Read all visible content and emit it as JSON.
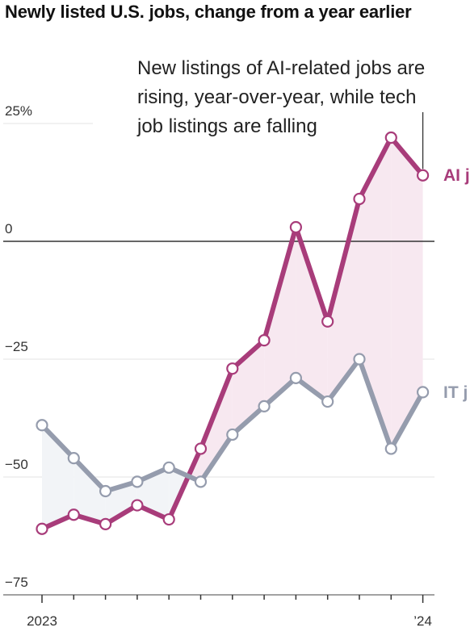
{
  "title": "Newly listed U.S. jobs, change from a year earlier",
  "colors": {
    "ai": "#a83c7a",
    "it": "#959cad",
    "ai_fill": "#f7e8f0",
    "it_fill": "#f2f4f7",
    "grid": "#e3e3e3",
    "zero_line": "#333333"
  },
  "chart_data": {
    "type": "line",
    "title": "Newly listed U.S. jobs, change from a year earlier",
    "x": [
      "2023-01",
      "2023-02",
      "2023-03",
      "2023-04",
      "2023-05",
      "2023-06",
      "2023-07",
      "2023-08",
      "2023-09",
      "2023-10",
      "2023-11",
      "2023-12",
      "2024-01"
    ],
    "x_tick_labels": [
      {
        "index": 0,
        "label": "2023"
      },
      {
        "index": 12,
        "label": "’24"
      }
    ],
    "y_ticks": [
      25,
      0,
      -25,
      -50,
      -75
    ],
    "y_tick_labels": [
      "25%",
      "0",
      "−25",
      "−50",
      "−75"
    ],
    "ylim": [
      -75,
      25
    ],
    "grid": true,
    "series": [
      {
        "name": "AI jobs",
        "label": "AI j",
        "color_key": "ai",
        "values": [
          -61,
          -58,
          -60,
          -56,
          -59,
          -44,
          -27,
          -21,
          3,
          -17,
          9,
          22,
          14
        ]
      },
      {
        "name": "IT jobs",
        "label": "IT j",
        "color_key": "it",
        "values": [
          -39,
          -46,
          -53,
          -51,
          -48,
          -51,
          -41,
          -35,
          -29,
          -34,
          -25,
          -44,
          -32
        ]
      }
    ],
    "annotation": {
      "lines": [
        "New listings of AI-related jobs are",
        "rising, year-over-year, while tech",
        "job listings are falling"
      ],
      "points_to_index": 12
    }
  }
}
